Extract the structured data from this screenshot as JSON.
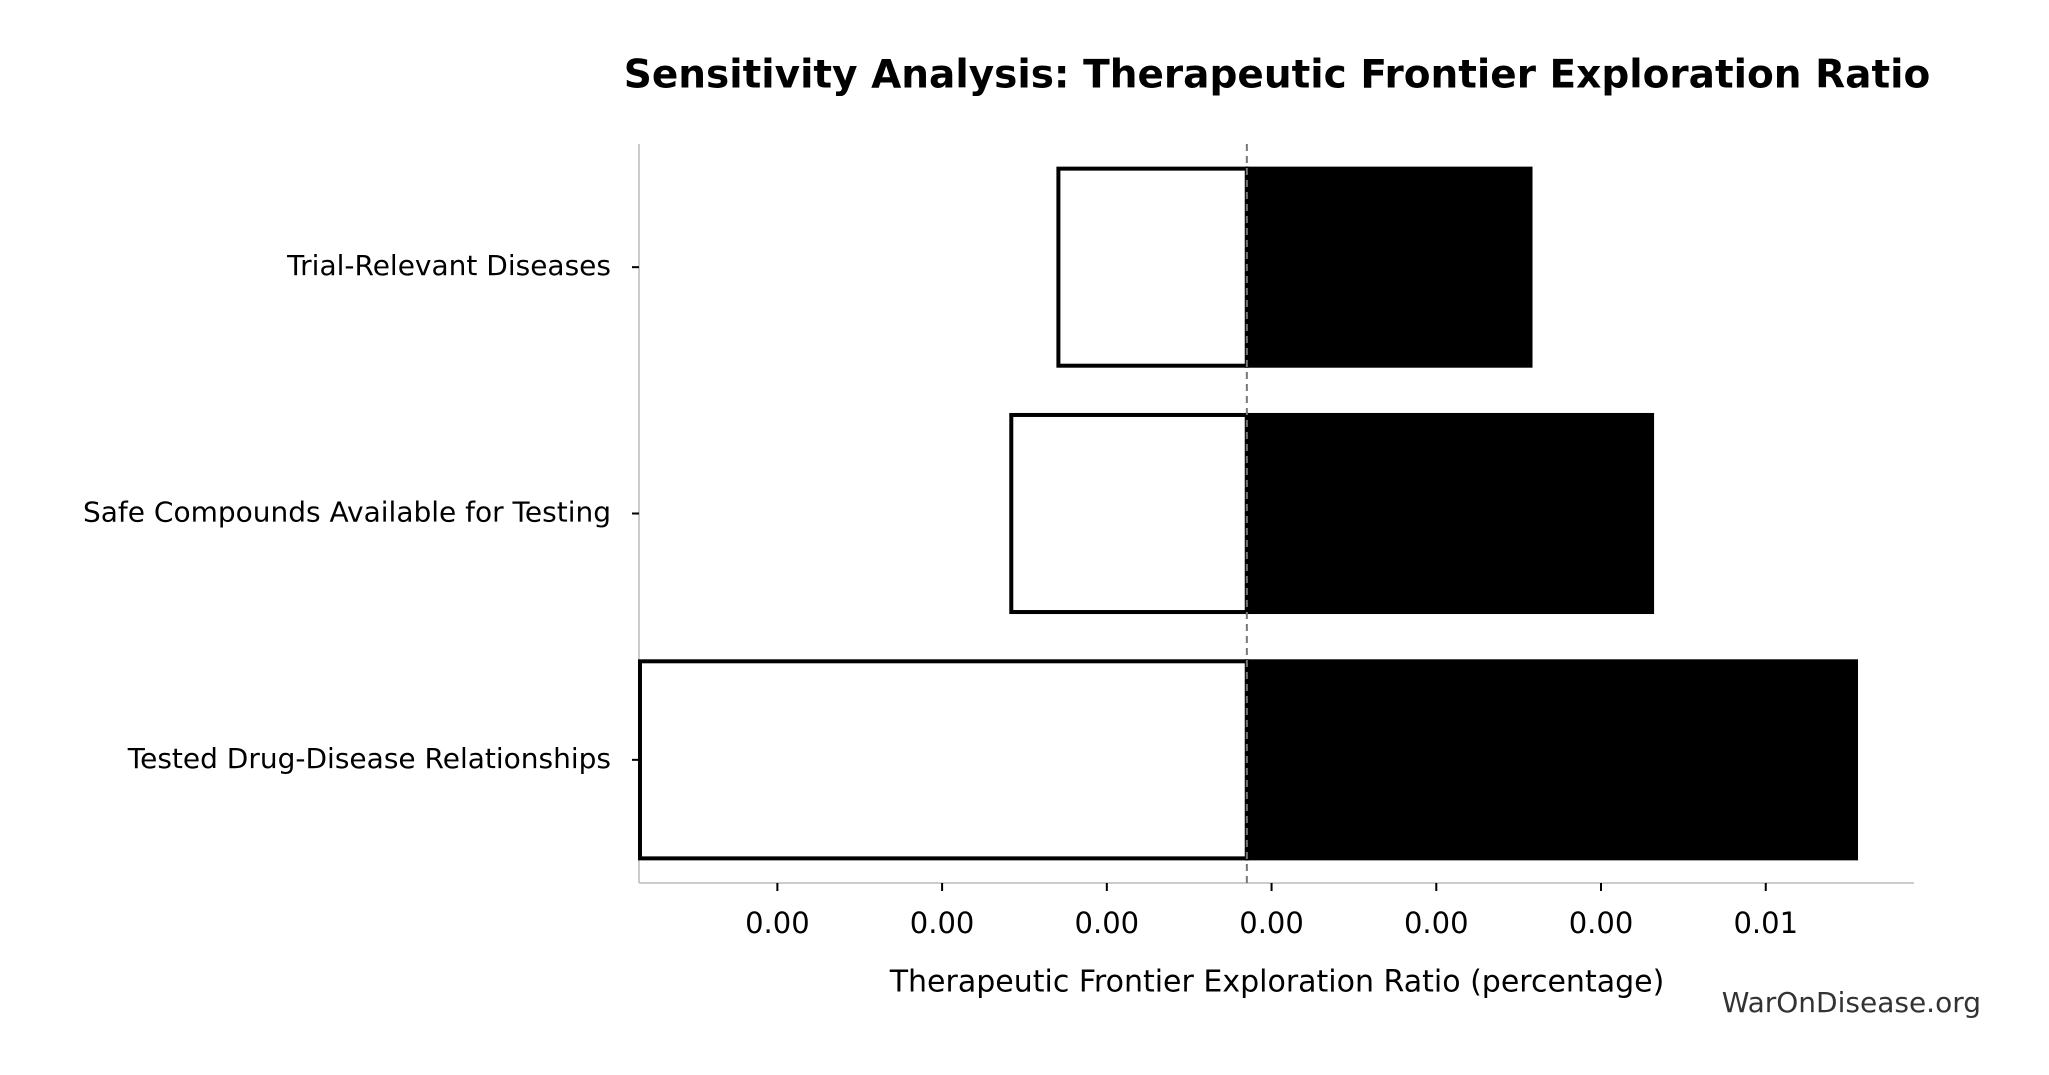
{
  "chart_data": {
    "type": "tornado",
    "title": "Sensitivity Analysis: Therapeutic Frontier Exploration Ratio",
    "xlabel": "Therapeutic Frontier Exploration Ratio (percentage)",
    "watermark": "WarOnDisease.org",
    "categories": [
      "Trial-Relevant Diseases",
      "Safe Compounds Available for Testing",
      "Tested Drug-Disease Relationships"
    ],
    "baseline": 0.003425,
    "low_values": [
      0.002853,
      0.00271,
      0.001583
    ],
    "high_values": [
      0.004286,
      0.004655,
      0.005274
    ],
    "low_color": "#ffffff",
    "high_color": "#000000",
    "xlim": [
      0.00158,
      0.00545
    ],
    "xticks": [
      {
        "value": 0.002,
        "label": "0.00"
      },
      {
        "value": 0.0025,
        "label": "0.00"
      },
      {
        "value": 0.003,
        "label": "0.00"
      },
      {
        "value": 0.0035,
        "label": "0.00"
      },
      {
        "value": 0.004,
        "label": "0.00"
      },
      {
        "value": 0.0045,
        "label": "0.00"
      },
      {
        "value": 0.005,
        "label": "0.01"
      }
    ]
  }
}
